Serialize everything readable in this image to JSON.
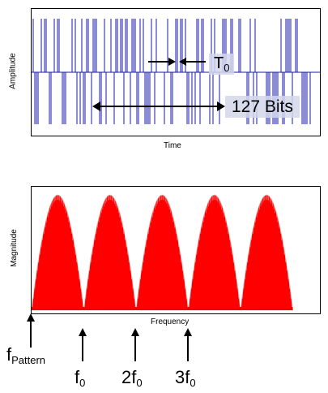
{
  "time_plot": {
    "ylabel": "Amplitude",
    "xlabel": "Time",
    "period_label": "T",
    "period_sub": "0",
    "bits_label": "127 Bits",
    "line_color": "#1a1aa8"
  },
  "freq_plot": {
    "ylabel": "Magnitude",
    "xlabel": "Frequency",
    "fill_color": "#ff0000",
    "lobe_count": 5
  },
  "markers": [
    {
      "main": "f",
      "sub": "Pattern",
      "prefix": ""
    },
    {
      "main": "f",
      "sub": "0",
      "prefix": ""
    },
    {
      "main": "f",
      "sub": "0",
      "prefix": "2"
    },
    {
      "main": "f",
      "sub": "0",
      "prefix": "3"
    }
  ],
  "chart_data": {
    "type": "area",
    "title": "",
    "xlabel": "Frequency",
    "ylabel": "Magnitude",
    "x_markers": [
      "fPattern",
      "f0",
      "2f0",
      "3f0"
    ],
    "lobes": 5,
    "lobe_peak_relative": [
      1,
      1,
      1,
      1,
      1
    ],
    "grid": false
  }
}
